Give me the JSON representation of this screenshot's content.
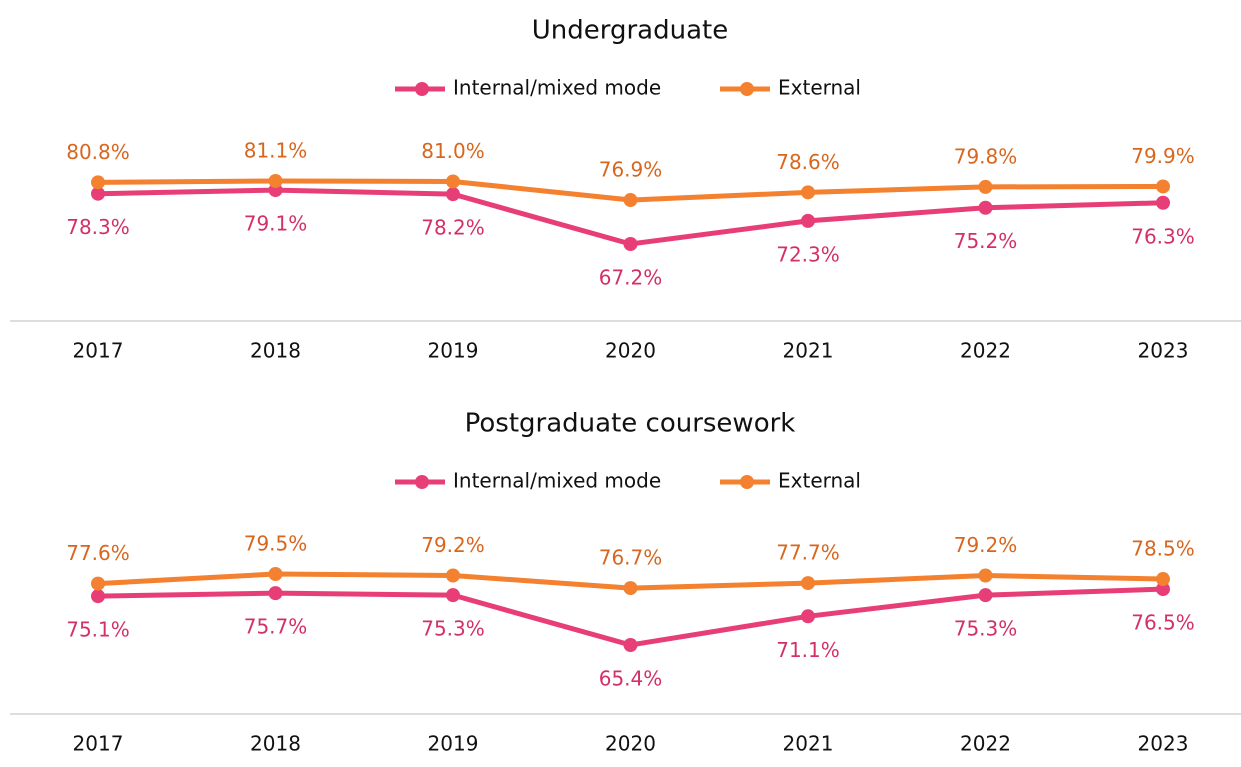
{
  "chart_data": [
    {
      "type": "line",
      "title": "Undergraduate",
      "categories": [
        "2017",
        "2018",
        "2019",
        "2020",
        "2021",
        "2022",
        "2023"
      ],
      "series": [
        {
          "name": "Internal/mixed mode",
          "color": "#e83e78",
          "label_color": "#d3306a",
          "values": [
            78.3,
            79.1,
            78.2,
            67.2,
            72.3,
            75.2,
            76.3
          ],
          "value_labels": [
            "78.3%",
            "79.1%",
            "78.2%",
            "67.2%",
            "72.3%",
            "75.2%",
            "76.3%"
          ]
        },
        {
          "name": "External",
          "color": "#f3812f",
          "label_color": "#d8661e",
          "values": [
            80.8,
            81.1,
            81.0,
            76.9,
            78.6,
            79.8,
            79.9
          ],
          "value_labels": [
            "80.8%",
            "81.1%",
            "81.0%",
            "76.9%",
            "78.6%",
            "79.8%",
            "79.9%"
          ]
        }
      ]
    },
    {
      "type": "line",
      "title": "Postgraduate coursework",
      "categories": [
        "2017",
        "2018",
        "2019",
        "2020",
        "2021",
        "2022",
        "2023"
      ],
      "series": [
        {
          "name": "Internal/mixed mode",
          "color": "#e83e78",
          "label_color": "#d3306a",
          "values": [
            75.1,
            75.7,
            75.3,
            65.4,
            71.1,
            75.3,
            76.5
          ],
          "value_labels": [
            "75.1%",
            "75.7%",
            "75.3%",
            "65.4%",
            "71.1%",
            "75.3%",
            "76.5%"
          ]
        },
        {
          "name": "External",
          "color": "#f3812f",
          "label_color": "#d8661e",
          "values": [
            77.6,
            79.5,
            79.2,
            76.7,
            77.7,
            79.2,
            78.5
          ],
          "value_labels": [
            "77.6%",
            "79.5%",
            "79.2%",
            "76.7%",
            "77.7%",
            "79.2%",
            "78.5%"
          ]
        }
      ]
    }
  ]
}
